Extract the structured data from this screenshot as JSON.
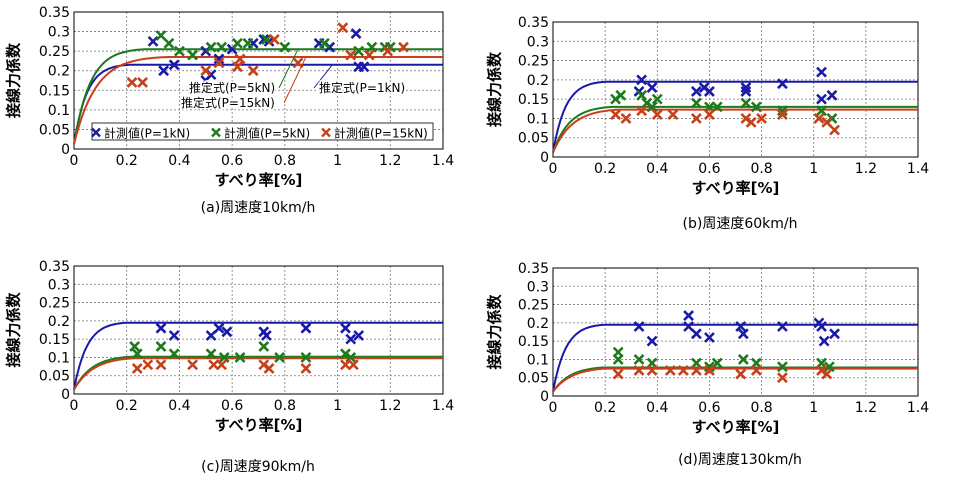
{
  "chart_data": [
    {
      "type": "scatter",
      "caption": "(a)周速度10km/h",
      "xlabel": "すべり率[%]",
      "ylabel": "接線力係数",
      "xlim": [
        0,
        1.4
      ],
      "ylim": [
        0,
        0.35
      ],
      "xticks": [
        "0",
        "0.2",
        "0.4",
        "0.6",
        "0.8",
        "1",
        "1.2",
        "1.4"
      ],
      "yticks": [
        "0",
        "0.05",
        "0.1",
        "0.15",
        "0.2",
        "0.25",
        "0.3",
        "0.35"
      ],
      "grid": true,
      "legend": {
        "position": "bottom",
        "entries": [
          "計測値(P=1kN)",
          "計測値(P=5kN)",
          "計測値(P=15kN)"
        ]
      },
      "annotations": [
        {
          "text": "推定式(P=1kN)",
          "series": "blue"
        },
        {
          "text": "推定式(P=5kN)",
          "series": "green"
        },
        {
          "text": "推定式(P=15kN)",
          "series": "red"
        }
      ],
      "curves": [
        {
          "name": "推定式(P=1kN)",
          "color": "#1a1aa8",
          "asymptote": 0.215,
          "rate": 20
        },
        {
          "name": "推定式(P=5kN)",
          "color": "#1d7a1d",
          "asymptote": 0.255,
          "rate": 16
        },
        {
          "name": "推定式(P=15kN)",
          "color": "#c8401a",
          "asymptote": 0.235,
          "rate": 12
        }
      ],
      "series": [
        {
          "name": "計測値(P=1kN)",
          "color": "#1a1aa8",
          "points": [
            [
              0.3,
              0.275
            ],
            [
              0.34,
              0.2
            ],
            [
              0.38,
              0.215
            ],
            [
              0.5,
              0.25
            ],
            [
              0.5,
              0.175
            ],
            [
              0.52,
              0.19
            ],
            [
              0.6,
              0.255
            ],
            [
              0.68,
              0.27
            ],
            [
              0.72,
              0.28
            ],
            [
              0.74,
              0.275
            ],
            [
              0.93,
              0.27
            ],
            [
              0.97,
              0.26
            ],
            [
              1.07,
              0.295
            ],
            [
              1.08,
              0.21
            ],
            [
              1.1,
              0.21
            ],
            [
              0.55,
              0.23
            ]
          ]
        },
        {
          "name": "計測値(P=5kN)",
          "color": "#1d7a1d",
          "points": [
            [
              0.33,
              0.29
            ],
            [
              0.36,
              0.27
            ],
            [
              0.4,
              0.25
            ],
            [
              0.45,
              0.24
            ],
            [
              0.52,
              0.26
            ],
            [
              0.56,
              0.26
            ],
            [
              0.62,
              0.27
            ],
            [
              0.66,
              0.27
            ],
            [
              0.73,
              0.28
            ],
            [
              0.8,
              0.26
            ],
            [
              0.95,
              0.27
            ],
            [
              1.08,
              0.25
            ],
            [
              1.13,
              0.26
            ],
            [
              1.18,
              0.26
            ],
            [
              1.2,
              0.26
            ]
          ]
        },
        {
          "name": "計測値(P=15kN)",
          "color": "#c8401a",
          "points": [
            [
              0.22,
              0.17
            ],
            [
              0.26,
              0.17
            ],
            [
              0.5,
              0.2
            ],
            [
              0.55,
              0.22
            ],
            [
              0.63,
              0.23
            ],
            [
              0.68,
              0.2
            ],
            [
              0.76,
              0.28
            ],
            [
              0.85,
              0.22
            ],
            [
              1.02,
              0.31
            ],
            [
              1.05,
              0.24
            ],
            [
              1.12,
              0.24
            ],
            [
              1.19,
              0.25
            ],
            [
              1.25,
              0.26
            ],
            [
              0.62,
              0.21
            ]
          ]
        }
      ]
    },
    {
      "type": "scatter",
      "caption": "(b)周速度60km/h",
      "xlabel": "すべり率[%]",
      "ylabel": "接線力係数",
      "xlim": [
        0,
        1.4
      ],
      "ylim": [
        0,
        0.35
      ],
      "xticks": [
        "0",
        "0.2",
        "0.4",
        "0.6",
        "0.8",
        "1",
        "1.2",
        "1.4"
      ],
      "yticks": [
        "0",
        "0.05",
        "0.1",
        "0.15",
        "0.2",
        "0.25",
        "0.3",
        "0.35"
      ],
      "grid": true,
      "curves": [
        {
          "color": "#1a1aa8",
          "asymptote": 0.195,
          "rate": 20
        },
        {
          "color": "#1d7a1d",
          "asymptote": 0.13,
          "rate": 15
        },
        {
          "color": "#c8401a",
          "asymptote": 0.123,
          "rate": 13
        }
      ],
      "series": [
        {
          "color": "#1a1aa8",
          "points": [
            [
              0.34,
              0.2
            ],
            [
              0.33,
              0.17
            ],
            [
              0.38,
              0.18
            ],
            [
              0.55,
              0.17
            ],
            [
              0.58,
              0.18
            ],
            [
              0.6,
              0.17
            ],
            [
              0.74,
              0.18
            ],
            [
              0.74,
              0.17
            ],
            [
              0.88,
              0.19
            ],
            [
              1.03,
              0.22
            ],
            [
              1.03,
              0.15
            ],
            [
              1.07,
              0.16
            ]
          ]
        },
        {
          "color": "#1d7a1d",
          "points": [
            [
              0.24,
              0.15
            ],
            [
              0.26,
              0.16
            ],
            [
              0.34,
              0.16
            ],
            [
              0.36,
              0.14
            ],
            [
              0.38,
              0.13
            ],
            [
              0.4,
              0.15
            ],
            [
              0.55,
              0.14
            ],
            [
              0.6,
              0.13
            ],
            [
              0.63,
              0.13
            ],
            [
              0.74,
              0.14
            ],
            [
              0.78,
              0.13
            ],
            [
              0.88,
              0.12
            ],
            [
              1.03,
              0.12
            ],
            [
              1.07,
              0.1
            ]
          ]
        },
        {
          "color": "#c8401a",
          "points": [
            [
              0.24,
              0.11
            ],
            [
              0.28,
              0.1
            ],
            [
              0.34,
              0.12
            ],
            [
              0.4,
              0.11
            ],
            [
              0.46,
              0.11
            ],
            [
              0.55,
              0.1
            ],
            [
              0.6,
              0.11
            ],
            [
              0.74,
              0.1
            ],
            [
              0.76,
              0.09
            ],
            [
              0.8,
              0.1
            ],
            [
              0.88,
              0.11
            ],
            [
              1.02,
              0.1
            ],
            [
              1.05,
              0.09
            ],
            [
              1.08,
              0.07
            ]
          ]
        }
      ]
    },
    {
      "type": "scatter",
      "caption": "(c)周速度90km/h",
      "xlabel": "すべり率[%]",
      "ylabel": "接線力係数",
      "xlim": [
        0,
        1.4
      ],
      "ylim": [
        0,
        0.35
      ],
      "xticks": [
        "0",
        "0.2",
        "0.4",
        "0.6",
        "0.8",
        "1",
        "1.2",
        "1.4"
      ],
      "yticks": [
        "0",
        "0.05",
        "0.1",
        "0.15",
        "0.2",
        "0.25",
        "0.3",
        "0.35"
      ],
      "grid": true,
      "curves": [
        {
          "color": "#1a1aa8",
          "asymptote": 0.195,
          "rate": 20
        },
        {
          "color": "#1d7a1d",
          "asymptote": 0.102,
          "rate": 14
        },
        {
          "color": "#c8401a",
          "asymptote": 0.098,
          "rate": 13
        }
      ],
      "series": [
        {
          "color": "#1a1aa8",
          "points": [
            [
              0.33,
              0.18
            ],
            [
              0.38,
              0.16
            ],
            [
              0.52,
              0.16
            ],
            [
              0.55,
              0.18
            ],
            [
              0.58,
              0.17
            ],
            [
              0.72,
              0.17
            ],
            [
              0.73,
              0.16
            ],
            [
              0.88,
              0.18
            ],
            [
              1.03,
              0.18
            ],
            [
              1.05,
              0.15
            ],
            [
              1.08,
              0.16
            ]
          ]
        },
        {
          "color": "#1d7a1d",
          "points": [
            [
              0.23,
              0.13
            ],
            [
              0.24,
              0.11
            ],
            [
              0.33,
              0.13
            ],
            [
              0.38,
              0.11
            ],
            [
              0.52,
              0.11
            ],
            [
              0.57,
              0.1
            ],
            [
              0.63,
              0.1
            ],
            [
              0.72,
              0.13
            ],
            [
              0.78,
              0.1
            ],
            [
              0.88,
              0.1
            ],
            [
              1.03,
              0.11
            ],
            [
              1.05,
              0.1
            ]
          ]
        },
        {
          "color": "#c8401a",
          "points": [
            [
              0.24,
              0.07
            ],
            [
              0.28,
              0.08
            ],
            [
              0.33,
              0.08
            ],
            [
              0.45,
              0.08
            ],
            [
              0.53,
              0.08
            ],
            [
              0.56,
              0.08
            ],
            [
              0.72,
              0.08
            ],
            [
              0.74,
              0.07
            ],
            [
              0.88,
              0.07
            ],
            [
              1.03,
              0.08
            ],
            [
              1.06,
              0.08
            ]
          ]
        }
      ]
    },
    {
      "type": "scatter",
      "caption": "(d)周速度130km/h",
      "xlabel": "すべり率[%]",
      "ylabel": "接線力係数",
      "xlim": [
        0,
        1.4
      ],
      "ylim": [
        0,
        0.35
      ],
      "xticks": [
        "0",
        "0.2",
        "0.4",
        "0.6",
        "0.8",
        "1",
        "1.2",
        "1.4"
      ],
      "yticks": [
        "0",
        "0.05",
        "0.1",
        "0.15",
        "0.2",
        "0.25",
        "0.3",
        "0.35"
      ],
      "grid": true,
      "curves": [
        {
          "color": "#1a1aa8",
          "asymptote": 0.195,
          "rate": 20
        },
        {
          "color": "#1d7a1d",
          "asymptote": 0.078,
          "rate": 14
        },
        {
          "color": "#c8401a",
          "asymptote": 0.075,
          "rate": 13
        }
      ],
      "series": [
        {
          "color": "#1a1aa8",
          "points": [
            [
              0.33,
              0.19
            ],
            [
              0.38,
              0.15
            ],
            [
              0.52,
              0.22
            ],
            [
              0.52,
              0.19
            ],
            [
              0.55,
              0.17
            ],
            [
              0.6,
              0.16
            ],
            [
              0.72,
              0.19
            ],
            [
              0.73,
              0.17
            ],
            [
              0.88,
              0.19
            ],
            [
              1.02,
              0.2
            ],
            [
              1.03,
              0.19
            ],
            [
              1.04,
              0.15
            ],
            [
              1.08,
              0.17
            ]
          ]
        },
        {
          "color": "#1d7a1d",
          "points": [
            [
              0.25,
              0.12
            ],
            [
              0.25,
              0.1
            ],
            [
              0.33,
              0.1
            ],
            [
              0.38,
              0.09
            ],
            [
              0.55,
              0.09
            ],
            [
              0.6,
              0.08
            ],
            [
              0.63,
              0.09
            ],
            [
              0.73,
              0.1
            ],
            [
              0.78,
              0.09
            ],
            [
              0.88,
              0.08
            ],
            [
              1.03,
              0.09
            ],
            [
              1.06,
              0.08
            ]
          ]
        },
        {
          "color": "#c8401a",
          "points": [
            [
              0.25,
              0.06
            ],
            [
              0.33,
              0.07
            ],
            [
              0.38,
              0.07
            ],
            [
              0.45,
              0.07
            ],
            [
              0.5,
              0.07
            ],
            [
              0.55,
              0.07
            ],
            [
              0.6,
              0.07
            ],
            [
              0.72,
              0.06
            ],
            [
              0.78,
              0.07
            ],
            [
              0.88,
              0.05
            ],
            [
              1.03,
              0.07
            ],
            [
              1.05,
              0.06
            ]
          ]
        }
      ]
    }
  ]
}
